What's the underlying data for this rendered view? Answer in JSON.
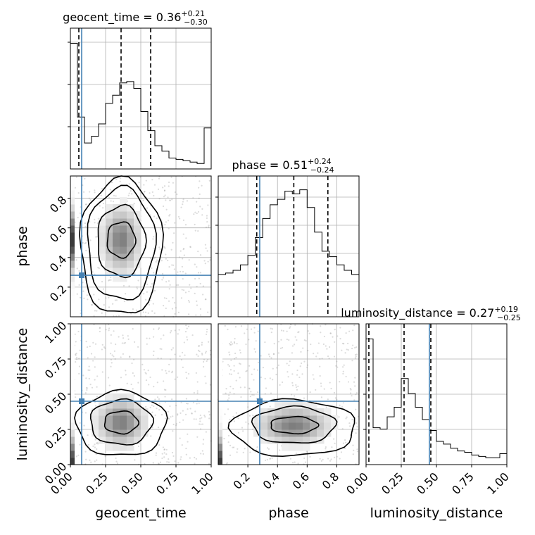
{
  "chart_data": {
    "type": "corner",
    "params": [
      "geocent_time",
      "phase",
      "luminosity_distance"
    ],
    "truth_color": "#4682b4",
    "truths": {
      "geocent_time": 0.08,
      "phase": 0.28,
      "luminosity_distance": 0.45
    },
    "diagonal": [
      {
        "param": "geocent_time",
        "title_main": "geocent_time = 0.36",
        "title_plus": "+0.21",
        "title_minus": "−0.30",
        "xlim": [
          0,
          1
        ],
        "edges": [
          0,
          0.05,
          0.1,
          0.15,
          0.2,
          0.25,
          0.3,
          0.35,
          0.4,
          0.45,
          0.5,
          0.55,
          0.6,
          0.65,
          0.7,
          0.75,
          0.8,
          0.85,
          0.9,
          0.95,
          1.0
        ],
        "counts": [
          0.92,
          0.38,
          0.19,
          0.24,
          0.33,
          0.48,
          0.54,
          0.63,
          0.64,
          0.59,
          0.42,
          0.28,
          0.17,
          0.13,
          0.08,
          0.07,
          0.06,
          0.05,
          0.04,
          0.3
        ],
        "ymax": 1.0,
        "quantiles": [
          0.06,
          0.36,
          0.57
        ],
        "xticks": [],
        "grid_x": [
          0.25,
          0.5,
          0.75
        ],
        "grid_y": [
          0.3,
          0.6,
          0.9
        ]
      },
      {
        "param": "phase",
        "title_main": "phase = 0.51",
        "title_plus": "+0.24",
        "title_minus": "−0.24",
        "xlim": [
          0,
          0.95
        ],
        "edges": [
          0,
          0.05,
          0.1,
          0.15,
          0.2,
          0.25,
          0.3,
          0.35,
          0.4,
          0.45,
          0.5,
          0.55,
          0.6,
          0.65,
          0.7,
          0.75,
          0.8,
          0.85,
          0.9,
          0.95
        ],
        "counts": [
          0.31,
          0.32,
          0.34,
          0.38,
          0.45,
          0.58,
          0.72,
          0.82,
          0.86,
          0.92,
          0.9,
          0.93,
          0.8,
          0.62,
          0.48,
          0.44,
          0.38,
          0.34,
          0.31
        ],
        "ymax": 1.0,
        "quantiles": [
          0.26,
          0.51,
          0.74
        ],
        "xticks": [],
        "grid_x": [
          0.2,
          0.4,
          0.6,
          0.8
        ],
        "grid_y": [
          0.25,
          0.45,
          0.65,
          0.85
        ]
      },
      {
        "param": "luminosity_distance",
        "title_main": "luminosity_distance = 0.27",
        "title_plus": "+0.19",
        "title_minus": "−0.25",
        "xlim": [
          0,
          1
        ],
        "edges": [
          0,
          0.05,
          0.1,
          0.15,
          0.2,
          0.25,
          0.3,
          0.35,
          0.4,
          0.45,
          0.5,
          0.55,
          0.6,
          0.65,
          0.7,
          0.75,
          0.8,
          0.85,
          0.9,
          0.95,
          1.0
        ],
        "counts": [
          0.92,
          0.27,
          0.26,
          0.35,
          0.42,
          0.63,
          0.52,
          0.42,
          0.33,
          0.25,
          0.17,
          0.15,
          0.12,
          0.1,
          0.09,
          0.07,
          0.06,
          0.05,
          0.05,
          0.08
        ],
        "ymax": 1.0,
        "quantiles": [
          0.02,
          0.27,
          0.46
        ],
        "xticks": [
          "0.00",
          "0.25",
          "0.50",
          "0.75",
          "1.00"
        ],
        "xtick_values": [
          0,
          0.25,
          0.5,
          0.75,
          1.0
        ],
        "grid_x": [
          0.25,
          0.5,
          0.75
        ],
        "grid_y": [
          0.25,
          0.5,
          0.75
        ]
      }
    ],
    "pairs": [
      {
        "x": "geocent_time",
        "y": "phase",
        "xlim": [
          0,
          1
        ],
        "ylim": [
          0,
          0.95
        ],
        "yticks": [
          "0.2",
          "0.4",
          "0.6",
          "0.8"
        ],
        "ytick_values": [
          0.2,
          0.4,
          0.6,
          0.8
        ],
        "density_center": [
          0.36,
          0.52
        ],
        "density_sigma": [
          0.08,
          0.13
        ],
        "contours": [
          [
            0.36,
            0.52,
            0.1,
            0.12
          ],
          [
            0.36,
            0.51,
            0.17,
            0.24
          ],
          [
            0.36,
            0.49,
            0.24,
            0.38
          ],
          [
            0.36,
            0.47,
            0.29,
            0.46
          ]
        ]
      },
      {
        "x": "geocent_time",
        "y": "luminosity_distance",
        "xlim": [
          0,
          1
        ],
        "ylim": [
          0,
          1
        ],
        "yticks": [
          "0.00",
          "0.25",
          "0.50",
          "0.75",
          "1.00"
        ],
        "ytick_values": [
          0,
          0.25,
          0.5,
          0.75,
          1.0
        ],
        "xticks": [
          "0.00",
          "0.25",
          "0.50",
          "0.75",
          "1.00"
        ],
        "xtick_values": [
          0,
          0.25,
          0.5,
          0.75,
          1.0
        ],
        "density_center": [
          0.36,
          0.3
        ],
        "density_sigma": [
          0.1,
          0.1
        ],
        "contours": [
          [
            0.36,
            0.3,
            0.12,
            0.08
          ],
          [
            0.36,
            0.3,
            0.22,
            0.16
          ],
          [
            0.36,
            0.29,
            0.32,
            0.23
          ]
        ]
      },
      {
        "x": "phase",
        "y": "luminosity_distance",
        "xlim": [
          0,
          0.95
        ],
        "ylim": [
          0,
          1
        ],
        "xticks": [
          "0.2",
          "0.4",
          "0.6",
          "0.8"
        ],
        "xtick_values": [
          0.2,
          0.4,
          0.6,
          0.8
        ],
        "density_center": [
          0.51,
          0.28
        ],
        "density_sigma": [
          0.14,
          0.08
        ],
        "contours": [
          [
            0.51,
            0.28,
            0.16,
            0.06
          ],
          [
            0.51,
            0.28,
            0.28,
            0.13
          ],
          [
            0.51,
            0.26,
            0.42,
            0.2
          ]
        ]
      }
    ],
    "axis_labels": {
      "x": [
        "geocent_time",
        "phase",
        "luminosity_distance"
      ],
      "y": [
        "phase",
        "luminosity_distance"
      ]
    }
  }
}
